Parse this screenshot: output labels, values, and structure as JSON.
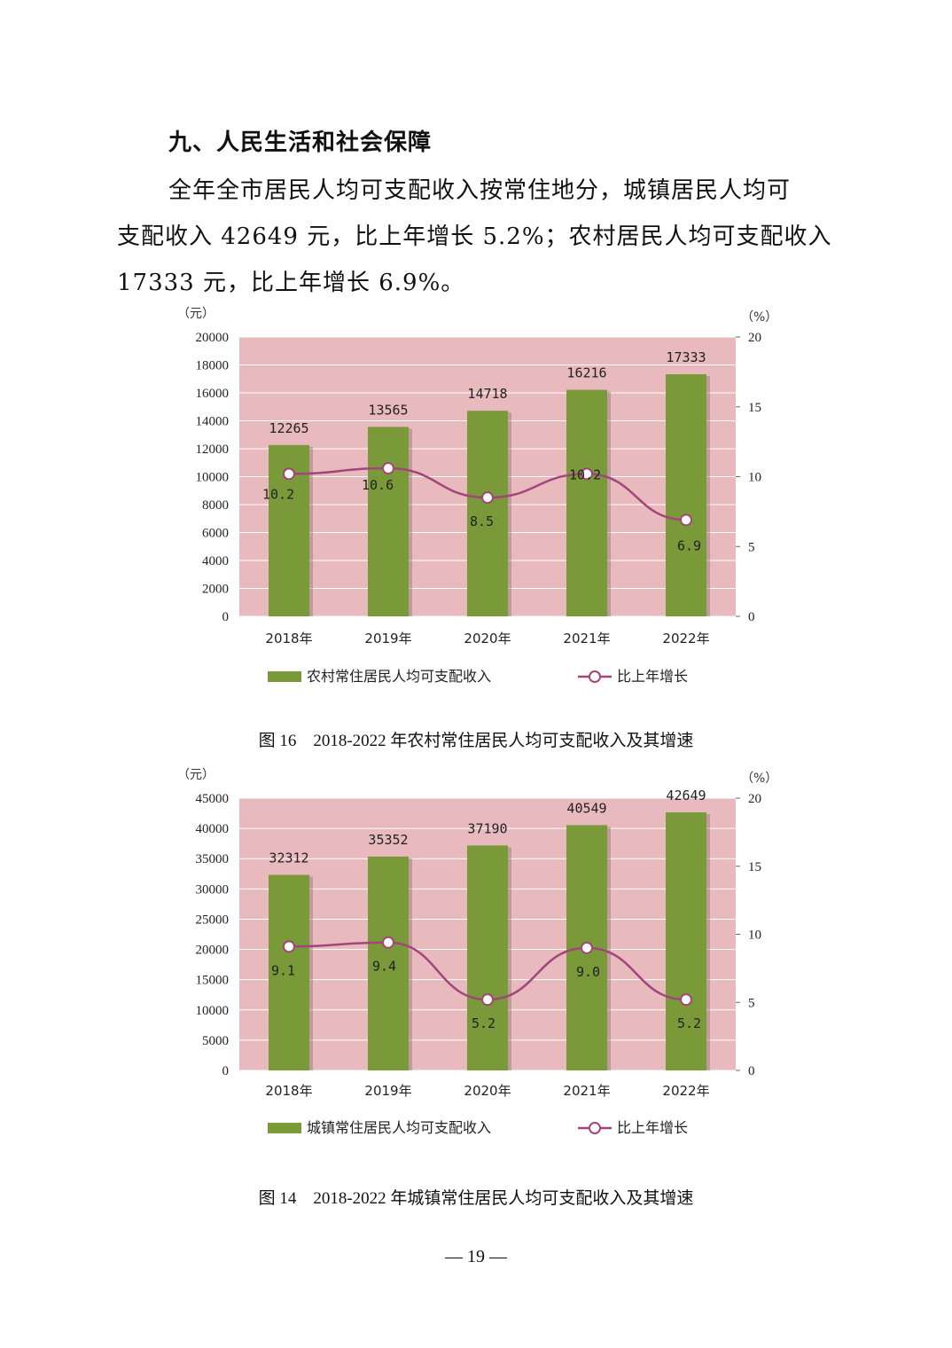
{
  "heading": "九、人民生活和社会保障",
  "paragraph_lines": [
    "全年全市居民人均可支配收入按常住地分，城镇居民人均可",
    "支配收入 42649 元，比上年增长 5.2%；农村居民人均可支配收入",
    "17333 元，比上年增长 6.9%。"
  ],
  "chart_data": [
    {
      "type": "bar",
      "categories": [
        "2018年",
        "2019年",
        "2020年",
        "2021年",
        "2022年"
      ],
      "series": [
        {
          "name": "农村常住居民人均可支配收入",
          "values": [
            12265,
            13565,
            14718,
            16216,
            17333
          ],
          "color": "#7a9a3a",
          "axis": "left"
        },
        {
          "name": "比上年增长",
          "type": "line",
          "values": [
            10.2,
            10.6,
            8.5,
            10.2,
            6.9
          ],
          "value_labels": [
            "10.2",
            "10.6",
            "8.5",
            "10.2",
            "6.9"
          ],
          "color": "#a1457a",
          "axis": "right"
        }
      ],
      "y_left_unit": "（元）",
      "y_right_unit": "（%）",
      "ylim_left": [
        0,
        20000
      ],
      "yticks_left": [
        "0",
        "2000",
        "4000",
        "6000",
        "8000",
        "10000",
        "12000",
        "14000",
        "16000",
        "18000",
        "20000"
      ],
      "ylim_right": [
        0,
        20
      ],
      "yticks_right": [
        "0",
        "5",
        "10",
        "15",
        "20"
      ],
      "plot_background": "#e8b9bd",
      "legend_position": "bottom",
      "caption": "图 16　2018-2022 年农村常住居民人均可支配收入及其增速"
    },
    {
      "type": "bar",
      "categories": [
        "2018年",
        "2019年",
        "2020年",
        "2021年",
        "2022年"
      ],
      "series": [
        {
          "name": "城镇常住居民人均可支配收入",
          "values": [
            32312,
            35352,
            37190,
            40549,
            42649
          ],
          "color": "#7a9a3a",
          "axis": "left"
        },
        {
          "name": "比上年增长",
          "type": "line",
          "values": [
            9.1,
            9.4,
            5.2,
            9.0,
            5.2
          ],
          "value_labels": [
            "9.1",
            "9.4",
            "5.2",
            "9.0",
            "5.2"
          ],
          "color": "#a1457a",
          "axis": "right"
        }
      ],
      "y_left_unit": "（元）",
      "y_right_unit": "（%）",
      "ylim_left": [
        0,
        45000
      ],
      "yticks_left": [
        "0",
        "5000",
        "10000",
        "15000",
        "20000",
        "25000",
        "30000",
        "35000",
        "40000",
        "45000"
      ],
      "ylim_right": [
        0,
        20
      ],
      "yticks_right": [
        "0",
        "5",
        "10",
        "15",
        "20"
      ],
      "plot_background": "#e8b9bd",
      "legend_position": "bottom",
      "caption": "图 14　2018-2022 年城镇常住居民人均可支配收入及其增速"
    }
  ],
  "page_number": "— 19 —"
}
